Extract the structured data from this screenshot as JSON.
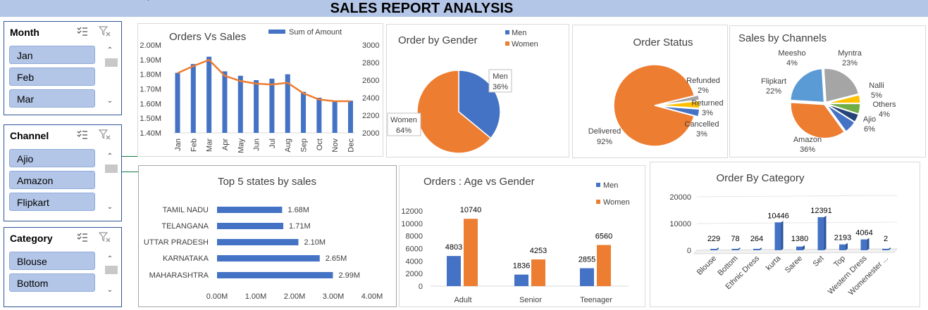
{
  "report": {
    "title": "SALES REPORT ANALYSIS"
  },
  "slicers": {
    "month": {
      "header": "Month",
      "items": [
        "Jan",
        "Feb",
        "Mar"
      ]
    },
    "channel": {
      "header": "Channel",
      "items": [
        "Ajio",
        "Amazon",
        "Flipkart"
      ]
    },
    "category": {
      "header": "Category",
      "items": [
        "Blouse",
        "Bottom"
      ]
    }
  },
  "icons": {
    "multi_select": "multi-select-icon",
    "clear_filter": "clear-filter-icon",
    "scroll_up": "chevron-up-icon",
    "scroll_down": "chevron-down-icon"
  },
  "colors": {
    "blue": "#4472c4",
    "orange": "#ed7d31",
    "gray": "#a5a5a5",
    "yellow": "#ffc000",
    "lightblue": "#5b9bd5",
    "green": "#70ad47",
    "navy": "#264478",
    "header": "#b4c6e7"
  },
  "chart_data": [
    {
      "id": "orders_vs_sales",
      "type": "bar",
      "title": "Orders Vs Sales",
      "categories": [
        "Jan",
        "Feb",
        "Mar",
        "Apr",
        "May",
        "Jun",
        "Jul",
        "Aug",
        "Sep",
        "Oct",
        "Nov",
        "Dec"
      ],
      "series": [
        {
          "name": "Sum of Amount",
          "values": [
            1.81,
            1.87,
            1.92,
            1.82,
            1.79,
            1.76,
            1.77,
            1.8,
            1.68,
            1.64,
            1.62,
            1.62
          ]
        },
        {
          "name": "",
          "type": "line",
          "axis": "right",
          "values": [
            2680,
            2760,
            2830,
            2650,
            2590,
            2560,
            2550,
            2570,
            2450,
            2380,
            2360,
            2360
          ]
        }
      ],
      "ylim": [
        1.4,
        2.0
      ],
      "y_ticks": [
        "1.40M",
        "1.50M",
        "1.60M",
        "1.70M",
        "1.80M",
        "1.90M",
        "2.00M"
      ],
      "y2lim": [
        2000,
        3000
      ],
      "y2_ticks": [
        "2000",
        "2200",
        "2400",
        "2600",
        "2800",
        "3000"
      ],
      "legend": "top-right"
    },
    {
      "id": "order_by_gender",
      "type": "pie",
      "title": "Order by Gender",
      "categories": [
        "Men",
        "Women"
      ],
      "values": [
        36,
        64
      ],
      "labels": [
        {
          "name": "Men",
          "value": "36%"
        },
        {
          "name": "Women",
          "value": "64%"
        }
      ],
      "legend": "top-right"
    },
    {
      "id": "order_status",
      "type": "pie",
      "title": "Order Status",
      "categories": [
        "Delivered",
        "Refunded",
        "Returned",
        "Cancelled"
      ],
      "values": [
        92,
        2,
        3,
        3
      ],
      "labels": [
        {
          "name": "Delivered",
          "value": "92%"
        },
        {
          "name": "Refunded",
          "value": "2%"
        },
        {
          "name": "Returned",
          "value": "3%"
        },
        {
          "name": "Cancelled",
          "value": "3%"
        }
      ]
    },
    {
      "id": "sales_by_channels",
      "type": "pie",
      "title": "Sales by Channels",
      "categories": [
        "Amazon",
        "Myntra",
        "Flipkart",
        "Meesho",
        "Nalli",
        "Others",
        "Ajio"
      ],
      "values": [
        36,
        23,
        22,
        4,
        5,
        4,
        6
      ],
      "labels": [
        {
          "name": "Amazon",
          "value": "36%"
        },
        {
          "name": "Myntra",
          "value": "23%"
        },
        {
          "name": "Flipkart",
          "value": "22%"
        },
        {
          "name": "Meesho",
          "value": "4%"
        },
        {
          "name": "Nalli",
          "value": "5%"
        },
        {
          "name": "Others",
          "value": "4%"
        },
        {
          "name": "Ajio",
          "value": "6%"
        }
      ]
    },
    {
      "id": "top_states",
      "type": "bar",
      "orientation": "horizontal",
      "title": "Top 5 states by sales",
      "categories": [
        "TAMIL NADU",
        "TELANGANA",
        "UTTAR PRADESH",
        "KARNATAKA",
        "MAHARASHTRA"
      ],
      "values": [
        1.68,
        1.71,
        2.1,
        2.65,
        2.99
      ],
      "value_labels": [
        "1.68M",
        "1.71M",
        "2.10M",
        "2.65M",
        "2.99M"
      ],
      "xlim": [
        0,
        4
      ],
      "x_ticks": [
        "0.00M",
        "1.00M",
        "2.00M",
        "3.00M",
        "4.00M"
      ]
    },
    {
      "id": "age_vs_gender",
      "type": "bar",
      "title": "Orders : Age vs Gender",
      "categories": [
        "Adult",
        "Senior",
        "Teenager"
      ],
      "series": [
        {
          "name": "Men",
          "values": [
            4803,
            1836,
            2855
          ],
          "labels": [
            "4803",
            "1836",
            "2855"
          ]
        },
        {
          "name": "Women",
          "values": [
            10740,
            4253,
            6560
          ],
          "labels": [
            "10740",
            "4253",
            "6560"
          ]
        }
      ],
      "ylim": [
        0,
        12000
      ],
      "y_ticks": [
        "0",
        "2000",
        "4000",
        "6000",
        "8000",
        "10000",
        "12000"
      ],
      "legend": "top-right"
    },
    {
      "id": "order_by_category",
      "type": "bar",
      "title": "Order By Category",
      "categories": [
        "Blouse",
        "Bottom",
        "Ethnic Dress",
        "kurta",
        "Saree",
        "Set",
        "Top",
        "Western Dress",
        "Womenester ..."
      ],
      "values": [
        229,
        78,
        264,
        10446,
        1380,
        12391,
        2193,
        4064,
        2
      ],
      "value_labels": [
        "229",
        "78",
        "264",
        "10446",
        "1380",
        "12391",
        "2193",
        "4064",
        "2"
      ],
      "ylim": [
        0,
        20000
      ],
      "y_ticks": [
        "0",
        "10000",
        "20000"
      ]
    }
  ]
}
